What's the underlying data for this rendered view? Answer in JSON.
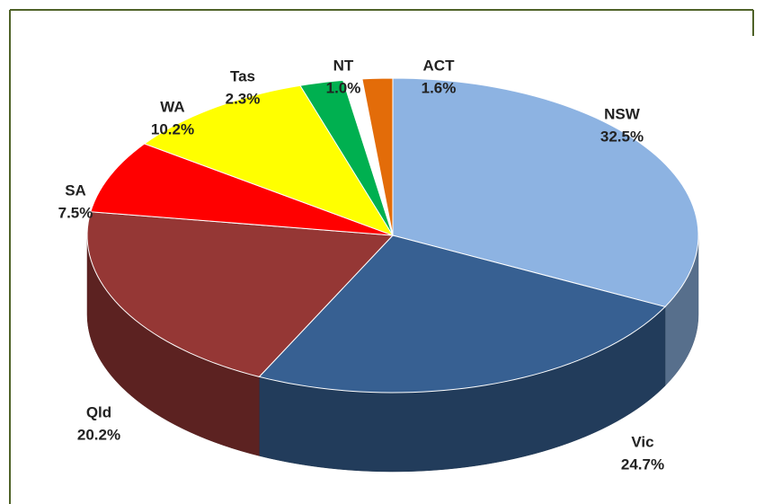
{
  "chart_data": {
    "type": "pie",
    "categories": [
      "NSW",
      "Vic",
      "Qld",
      "SA",
      "WA",
      "Tas",
      "NT",
      "ACT"
    ],
    "values": [
      32.5,
      24.7,
      20.2,
      7.5,
      10.2,
      2.3,
      1.0,
      1.6
    ],
    "value_labels": [
      "32.5%",
      "24.7%",
      "20.2%",
      "7.5%",
      "10.2%",
      "2.3%",
      "1.0%",
      "1.6%"
    ],
    "colors": [
      "#8db3e2",
      "#376092",
      "#953735",
      "#ff0000",
      "#ffff00",
      "#00b050",
      "#ffffff",
      "#e36c09"
    ]
  }
}
